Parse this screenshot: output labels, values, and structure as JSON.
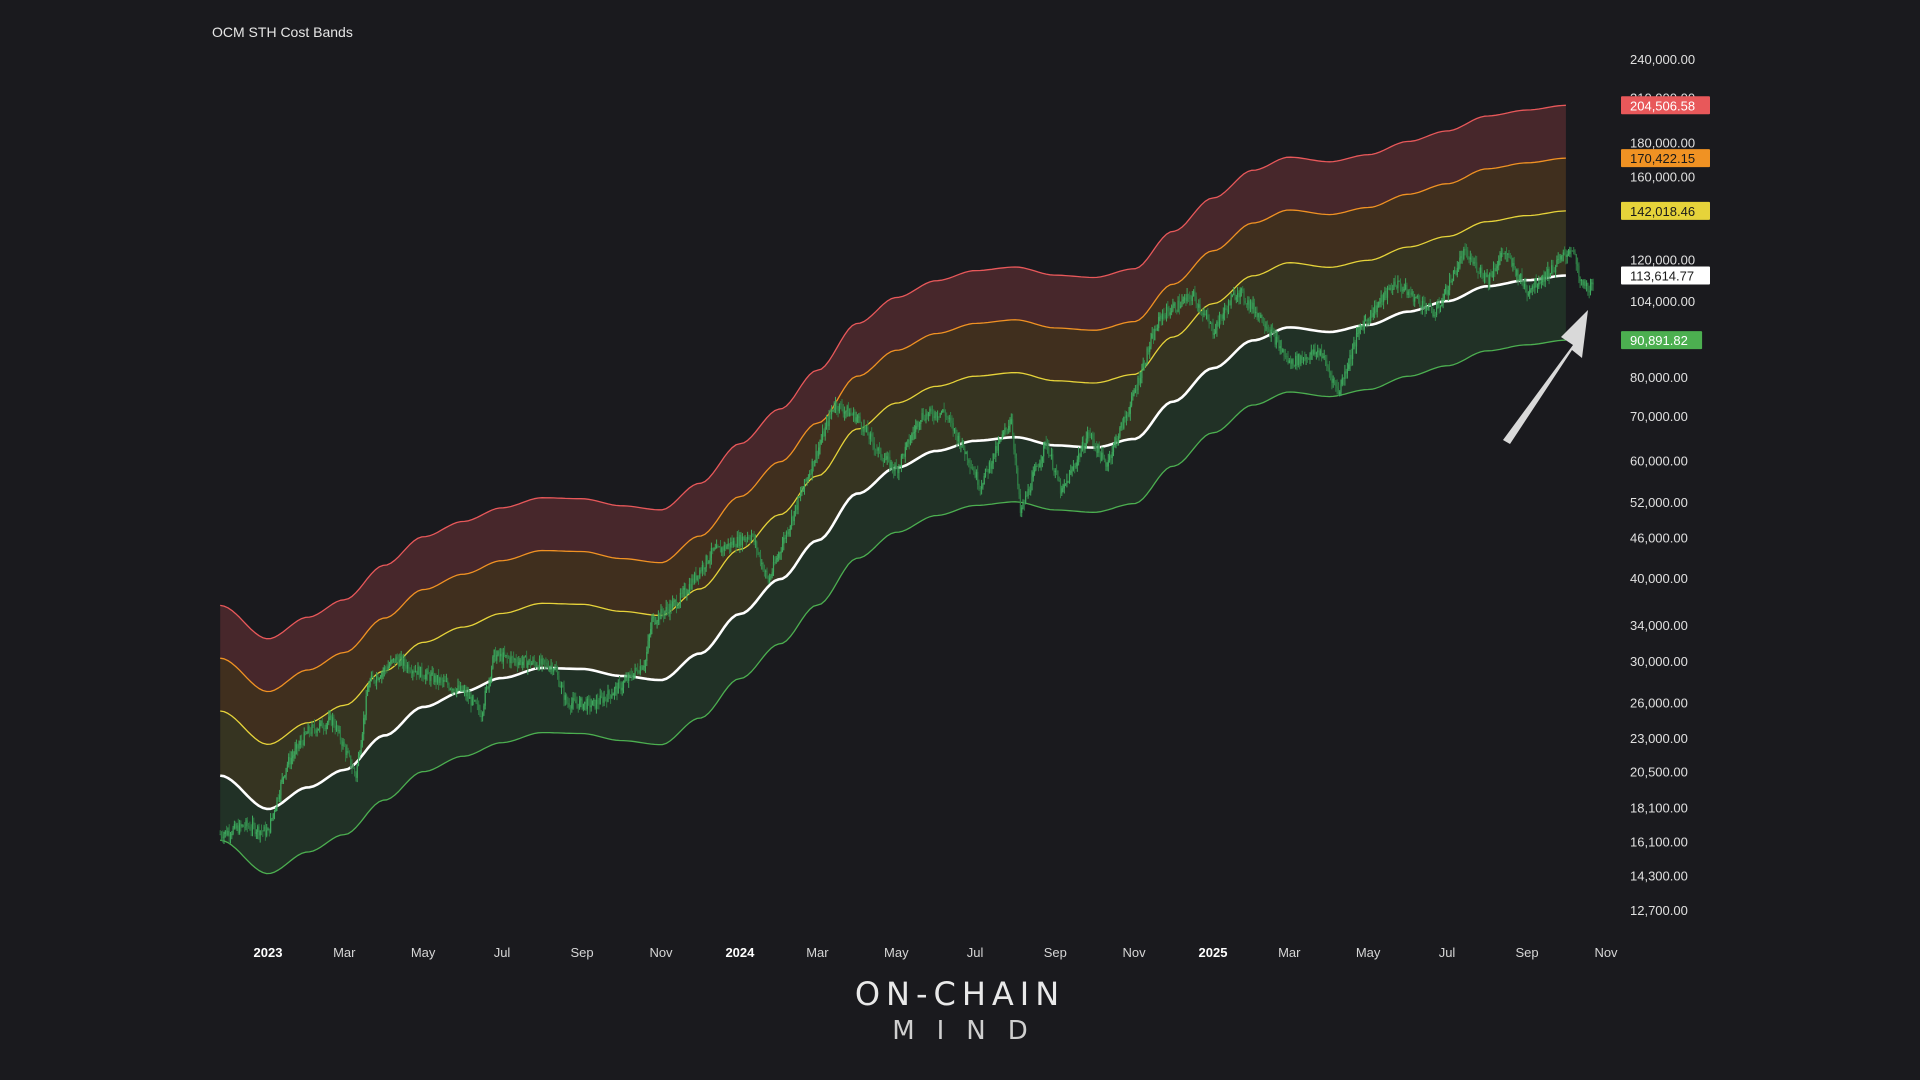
{
  "title": "OCM STH Cost Bands",
  "logo": {
    "line1": "ON-CHAIN",
    "line2": "MIND"
  },
  "chart_data": {
    "type": "line",
    "title": "OCM STH Cost Bands",
    "y_scale": "log",
    "ylim": [
      11500,
      268000
    ],
    "y_ticks": [
      12700,
      14300,
      16100,
      18100,
      20500,
      23000,
      26000,
      30000,
      34000,
      40000,
      46000,
      52000,
      60000,
      70000,
      80000,
      104000,
      120000,
      160000,
      180000,
      210000,
      240000
    ],
    "x_ticks": [
      {
        "label": "2023",
        "date": "2023-01-01",
        "bold": true
      },
      {
        "label": "Mar",
        "date": "2023-03-01"
      },
      {
        "label": "May",
        "date": "2023-05-01"
      },
      {
        "label": "Jul",
        "date": "2023-07-01"
      },
      {
        "label": "Sep",
        "date": "2023-09-01"
      },
      {
        "label": "Nov",
        "date": "2023-11-01"
      },
      {
        "label": "2024",
        "date": "2024-01-01",
        "bold": true
      },
      {
        "label": "Mar",
        "date": "2024-03-01"
      },
      {
        "label": "May",
        "date": "2024-05-01"
      },
      {
        "label": "Jul",
        "date": "2024-07-01"
      },
      {
        "label": "Sep",
        "date": "2024-09-01"
      },
      {
        "label": "Nov",
        "date": "2024-11-01"
      },
      {
        "label": "2025",
        "date": "2025-01-01",
        "bold": true
      },
      {
        "label": "Mar",
        "date": "2025-03-01"
      },
      {
        "label": "May",
        "date": "2025-05-01"
      },
      {
        "label": "Jul",
        "date": "2025-07-01"
      },
      {
        "label": "Sep",
        "date": "2025-09-01"
      },
      {
        "label": "Nov",
        "date": "2025-11-01"
      }
    ],
    "cost_basis": {
      "color": "#ffffff",
      "points": [
        [
          "2022-11-25",
          20200
        ],
        [
          "2023-01-01",
          18000
        ],
        [
          "2023-02-01",
          19400
        ],
        [
          "2023-03-01",
          20600
        ],
        [
          "2023-04-01",
          23200
        ],
        [
          "2023-05-01",
          25600
        ],
        [
          "2023-06-01",
          27000
        ],
        [
          "2023-07-01",
          28300
        ],
        [
          "2023-08-01",
          29300
        ],
        [
          "2023-09-01",
          29200
        ],
        [
          "2023-10-01",
          28500
        ],
        [
          "2023-11-01",
          28100
        ],
        [
          "2023-12-01",
          30800
        ],
        [
          "2024-01-01",
          35300
        ],
        [
          "2024-02-01",
          39800
        ],
        [
          "2024-03-01",
          45500
        ],
        [
          "2024-04-01",
          53500
        ],
        [
          "2024-05-01",
          58500
        ],
        [
          "2024-06-01",
          62000
        ],
        [
          "2024-07-01",
          64200
        ],
        [
          "2024-08-01",
          65000
        ],
        [
          "2024-09-01",
          63200
        ],
        [
          "2024-10-01",
          62700
        ],
        [
          "2024-11-01",
          64600
        ],
        [
          "2024-12-01",
          73500
        ],
        [
          "2025-01-01",
          82500
        ],
        [
          "2025-02-01",
          90800
        ],
        [
          "2025-03-01",
          95000
        ],
        [
          "2025-04-01",
          93500
        ],
        [
          "2025-05-01",
          95800
        ],
        [
          "2025-06-01",
          100300
        ],
        [
          "2025-07-01",
          104000
        ],
        [
          "2025-08-01",
          109500
        ],
        [
          "2025-09-01",
          111800
        ],
        [
          "2025-10-01",
          113614.77
        ]
      ]
    },
    "bands": [
      {
        "multiplier": 1.8,
        "color": "#e8585a",
        "last_value": 204506.58
      },
      {
        "multiplier": 1.5,
        "color": "#f09223",
        "last_value": 170422.15
      },
      {
        "multiplier": 1.25,
        "color": "#e6d33a",
        "last_value": 142018.46
      },
      {
        "multiplier": 1.0,
        "color": "#ffffff",
        "last_value": 113614.77
      },
      {
        "multiplier": 0.8,
        "color": "#4caf50",
        "last_value": 90891.82
      }
    ],
    "price": {
      "color": "#3ea85e",
      "points": [
        [
          "2022-11-25",
          16500
        ],
        [
          "2022-12-15",
          17000
        ],
        [
          "2023-01-01",
          16600
        ],
        [
          "2023-01-15",
          20900
        ],
        [
          "2023-02-01",
          23500
        ],
        [
          "2023-02-20",
          24500
        ],
        [
          "2023-03-10",
          20200
        ],
        [
          "2023-03-20",
          27800
        ],
        [
          "2023-04-10",
          30200
        ],
        [
          "2023-05-01",
          28700
        ],
        [
          "2023-06-01",
          27000
        ],
        [
          "2023-06-15",
          25100
        ],
        [
          "2023-06-25",
          30600
        ],
        [
          "2023-07-15",
          30000
        ],
        [
          "2023-08-10",
          29500
        ],
        [
          "2023-08-20",
          26000
        ],
        [
          "2023-09-10",
          25800
        ],
        [
          "2023-10-01",
          27500
        ],
        [
          "2023-10-20",
          30000
        ],
        [
          "2023-10-25",
          34500
        ],
        [
          "2023-11-15",
          37000
        ],
        [
          "2023-12-10",
          43500
        ],
        [
          "2024-01-10",
          46500
        ],
        [
          "2024-01-23",
          39500
        ],
        [
          "2024-02-15",
          52000
        ],
        [
          "2024-03-01",
          62000
        ],
        [
          "2024-03-14",
          73000
        ],
        [
          "2024-04-01",
          69500
        ],
        [
          "2024-04-18",
          61500
        ],
        [
          "2024-05-01",
          58000
        ],
        [
          "2024-05-20",
          70000
        ],
        [
          "2024-06-07",
          71000
        ],
        [
          "2024-06-25",
          61000
        ],
        [
          "2024-07-05",
          55000
        ],
        [
          "2024-07-29",
          69500
        ],
        [
          "2024-08-05",
          50000
        ],
        [
          "2024-08-25",
          64000
        ],
        [
          "2024-09-06",
          53500
        ],
        [
          "2024-09-27",
          66000
        ],
        [
          "2024-10-10",
          59000
        ],
        [
          "2024-10-29",
          72500
        ],
        [
          "2024-11-12",
          88000
        ],
        [
          "2024-11-22",
          99000
        ],
        [
          "2024-12-17",
          106000
        ],
        [
          "2025-01-01",
          94000
        ],
        [
          "2025-01-20",
          108000
        ],
        [
          "2025-02-10",
          97000
        ],
        [
          "2025-03-01",
          84000
        ],
        [
          "2025-03-25",
          87500
        ],
        [
          "2025-04-08",
          76000
        ],
        [
          "2025-04-25",
          95000
        ],
        [
          "2025-05-22",
          111000
        ],
        [
          "2025-06-22",
          99500
        ],
        [
          "2025-07-14",
          122800
        ],
        [
          "2025-08-02",
          112500
        ],
        [
          "2025-08-14",
          123500
        ],
        [
          "2025-09-01",
          108000
        ],
        [
          "2025-09-20",
          116000
        ],
        [
          "2025-10-06",
          125500
        ],
        [
          "2025-10-12",
          110500
        ],
        [
          "2025-10-22",
          108500
        ]
      ]
    },
    "price_labels": [
      {
        "text": "204,506.58",
        "value": 204506.58,
        "bg": "#e8585a",
        "fg": "#ffffff"
      },
      {
        "text": "170,422.15",
        "value": 170422.15,
        "bg": "#f09223",
        "fg": "#1a1a1a"
      },
      {
        "text": "142,018.46",
        "value": 142018.46,
        "bg": "#e6d33a",
        "fg": "#1a1a1a"
      },
      {
        "text": "113,614.77",
        "value": 113614.77,
        "bg": "#ffffff",
        "fg": "#1a1a1a"
      },
      {
        "text": "90,891.82",
        "value": 90891.82,
        "bg": "#4caf50",
        "fg": "#ffffff"
      }
    ],
    "annotation": {
      "type": "arrow",
      "color": "#d9d9d9"
    },
    "grid": false
  }
}
